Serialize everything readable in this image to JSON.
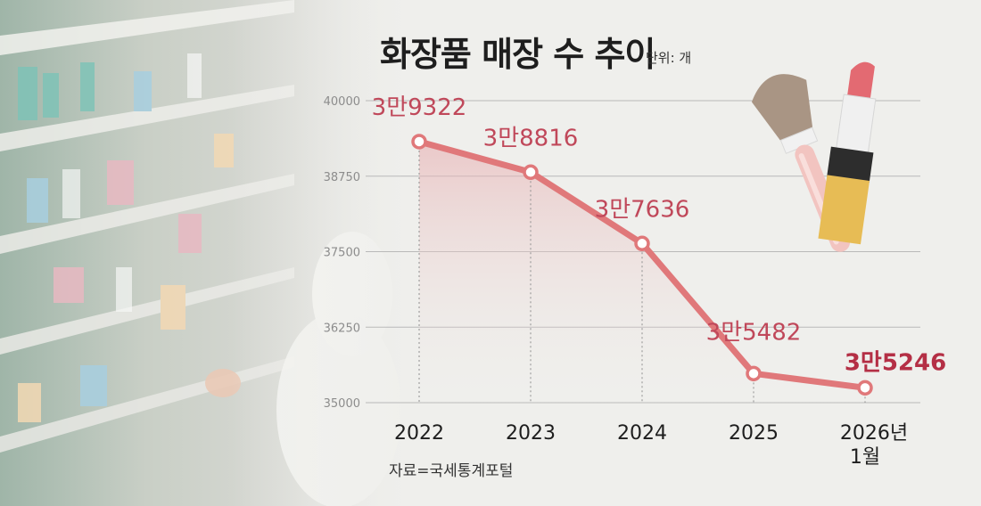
{
  "title": "화장품 매장 수 추이",
  "unit": "단위: 개",
  "source": "자료=국세통계포털",
  "colors": {
    "line": "#e0787a",
    "label": "#c0485a",
    "label_last": "#b42f45",
    "grid": "#b9b9b9",
    "background": "#efefec"
  },
  "chart_data": {
    "type": "area",
    "title": "화장품 매장 수 추이",
    "xlabel": "",
    "ylabel": "",
    "unit": "개",
    "categories": [
      "2022",
      "2023",
      "2024",
      "2025",
      "2026년 1월"
    ],
    "category_lines": [
      [
        "2022"
      ],
      [
        "2023"
      ],
      [
        "2024"
      ],
      [
        "2025"
      ],
      [
        "2026년",
        "1월"
      ]
    ],
    "values": [
      39322,
      38816,
      37636,
      35482,
      35246
    ],
    "value_labels": [
      "3만9322",
      "3만8816",
      "3만7636",
      "3만5482",
      "3만5246"
    ],
    "ylim": [
      35000,
      40000
    ],
    "yticks": [
      35000,
      36250,
      37500,
      38750,
      40000
    ],
    "ytick_labels": [
      "35000",
      "36250",
      "37500",
      "38750",
      "40000"
    ],
    "grid": true,
    "legend": "none"
  }
}
